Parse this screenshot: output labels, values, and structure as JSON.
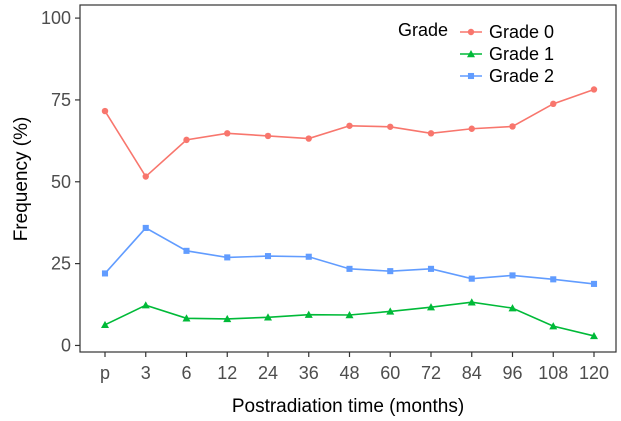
{
  "chart_data": {
    "type": "line",
    "xlabel": "Postradiation time (months)",
    "ylabel": "Frequency (%)",
    "categories": [
      "p",
      "3",
      "6",
      "12",
      "24",
      "36",
      "48",
      "60",
      "72",
      "84",
      "96",
      "108",
      "120"
    ],
    "ylim": [
      -2,
      104
    ],
    "yticks": [
      0,
      25,
      50,
      75,
      100
    ],
    "grid": false,
    "legend": {
      "title": "Grade",
      "position": "top-right"
    },
    "series": [
      {
        "name": "Grade 0",
        "color": "#f8766d",
        "marker": "circle",
        "values": [
          71.6,
          51.6,
          62.8,
          64.8,
          64.0,
          63.2,
          67.1,
          66.8,
          64.8,
          66.2,
          66.9,
          73.8,
          78.2
        ]
      },
      {
        "name": "Grade 1",
        "color": "#00ba38",
        "marker": "triangle",
        "values": [
          6.3,
          12.3,
          8.3,
          8.1,
          8.6,
          9.4,
          9.3,
          10.4,
          11.7,
          13.2,
          11.4,
          5.9,
          2.9
        ]
      },
      {
        "name": "Grade 2",
        "color": "#619cff",
        "marker": "square",
        "values": [
          22.0,
          35.9,
          28.9,
          26.9,
          27.3,
          27.1,
          23.4,
          22.7,
          23.4,
          20.4,
          21.4,
          20.2,
          18.8
        ]
      }
    ]
  }
}
